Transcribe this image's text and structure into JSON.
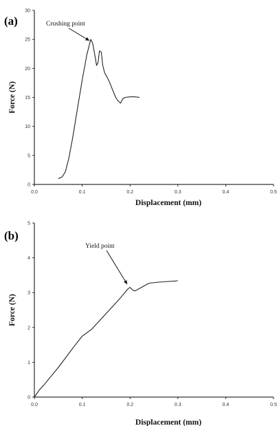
{
  "chart_data": [
    {
      "type": "line",
      "panel_label": "(a)",
      "xlabel": "Displacement (mm)",
      "ylabel": "Force (N)",
      "xlim": [
        0,
        0.5
      ],
      "ylim": [
        0,
        30
      ],
      "x_ticks": [
        0.0,
        0.1,
        0.2,
        0.3,
        0.4,
        0.5
      ],
      "x_tick_labels": [
        "0.0",
        "0.1",
        "0.2",
        "0.3",
        "0.4",
        "0.5"
      ],
      "y_ticks": [
        0,
        5,
        10,
        15,
        20,
        25,
        30
      ],
      "y_tick_labels": [
        "0",
        "5",
        "10",
        "15",
        "20",
        "25",
        "30"
      ],
      "grid": false,
      "annotation": {
        "text": "Crushing point",
        "x": 0.12,
        "y": 25
      },
      "series": [
        {
          "x": [
            0.05,
            0.058,
            0.065,
            0.072,
            0.08,
            0.09,
            0.1,
            0.11,
            0.118,
            0.122,
            0.127,
            0.13,
            0.133,
            0.136,
            0.14,
            0.143,
            0.147,
            0.15,
            0.155,
            0.16,
            0.165,
            0.17,
            0.175,
            0.18,
            0.185,
            0.19,
            0.2,
            0.21,
            0.22
          ],
          "y": [
            1.0,
            1.3,
            2.2,
            4.5,
            8.0,
            13.0,
            18.0,
            22.5,
            25.0,
            24.3,
            22.0,
            20.5,
            21.0,
            23.0,
            22.8,
            20.5,
            19.2,
            18.8,
            18.0,
            17.0,
            16.0,
            15.0,
            14.4,
            14.0,
            14.8,
            15.0,
            15.1,
            15.1,
            15.0
          ]
        }
      ]
    },
    {
      "type": "line",
      "panel_label": "(b)",
      "xlabel": "Displacement (mm)",
      "ylabel": "Force (N)",
      "xlim": [
        0,
        0.5
      ],
      "ylim": [
        0,
        5
      ],
      "x_ticks": [
        0.0,
        0.1,
        0.2,
        0.3,
        0.4,
        0.5
      ],
      "x_tick_labels": [
        "0.0",
        "0.1",
        "0.2",
        "0.3",
        "0.4",
        "0.5"
      ],
      "y_ticks": [
        0,
        1,
        2,
        3,
        4,
        5
      ],
      "y_tick_labels": [
        "0",
        "1",
        "2",
        "3",
        "4",
        "5"
      ],
      "grid": false,
      "annotation": {
        "text": "Yield point",
        "x": 0.2,
        "y": 3.15
      },
      "series": [
        {
          "x": [
            0.0,
            0.01,
            0.02,
            0.05,
            0.08,
            0.1,
            0.12,
            0.14,
            0.16,
            0.18,
            0.195,
            0.2,
            0.205,
            0.21,
            0.22,
            0.23,
            0.24,
            0.26,
            0.28,
            0.3
          ],
          "y": [
            0.0,
            0.2,
            0.35,
            0.85,
            1.4,
            1.75,
            1.95,
            2.25,
            2.55,
            2.85,
            3.1,
            3.15,
            3.08,
            3.05,
            3.12,
            3.2,
            3.27,
            3.3,
            3.32,
            3.34
          ]
        }
      ]
    }
  ]
}
